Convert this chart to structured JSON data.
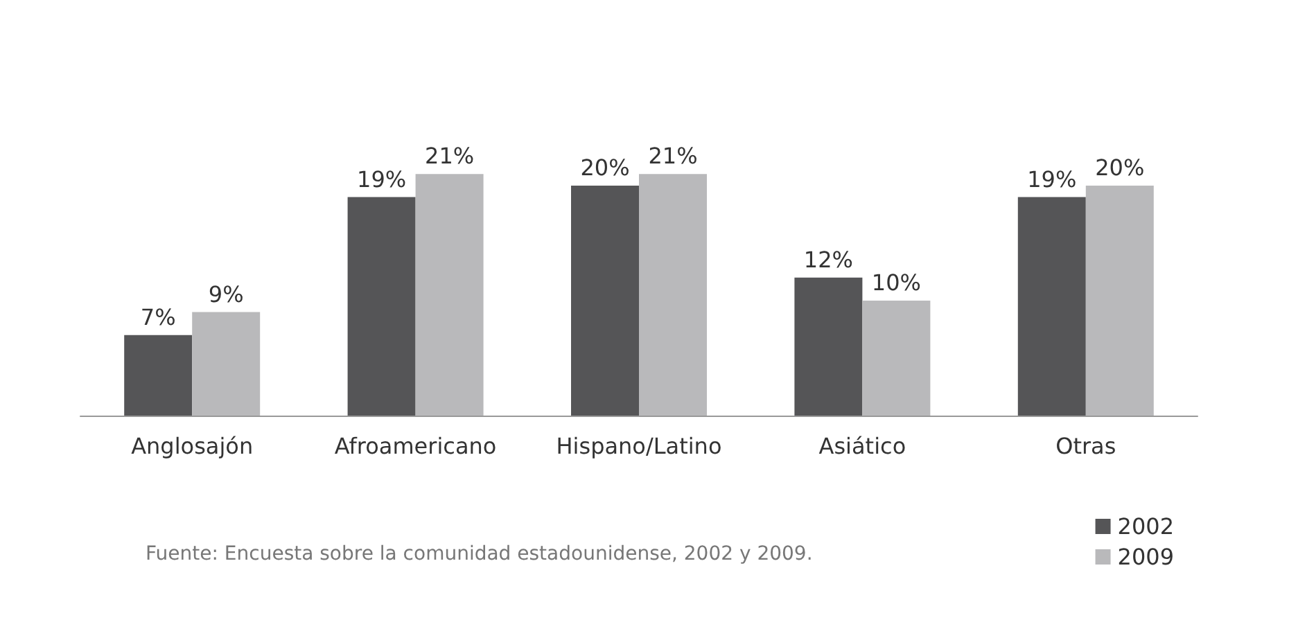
{
  "chart_data": {
    "type": "bar",
    "categories": [
      "Anglosajón",
      "Afroamericano",
      "Hispano/Latino",
      "Asiático",
      "Otras"
    ],
    "series": [
      {
        "name": "2002",
        "color": "#555557",
        "values": [
          7,
          19,
          20,
          12,
          19
        ],
        "value_labels": [
          "7%",
          "19%",
          "20%",
          "12%",
          "19%"
        ]
      },
      {
        "name": "2009",
        "color": "#b9b9bb",
        "values": [
          9,
          21,
          21,
          10,
          20
        ],
        "value_labels": [
          "9%",
          "21%",
          "21%",
          "10%",
          "20%"
        ]
      }
    ],
    "annotations": [
      "Fuente: Encuesta sobre la comunidad estadounidense, 2002 y 2009."
    ],
    "legend": "bottom right",
    "grid": false
  }
}
